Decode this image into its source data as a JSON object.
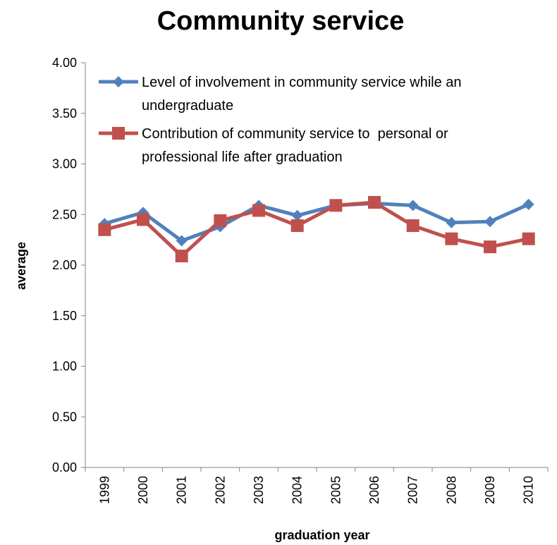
{
  "chart_data": {
    "type": "line",
    "title": "Community service",
    "xlabel": "graduation year",
    "ylabel": "average",
    "ylim": [
      0,
      4
    ],
    "yticks": [
      "0.00",
      "0.50",
      "1.00",
      "1.50",
      "2.00",
      "2.50",
      "3.00",
      "3.50",
      "4.00"
    ],
    "categories": [
      "1999",
      "2000",
      "2001",
      "2002",
      "2003",
      "2004",
      "2005",
      "2006",
      "2007",
      "2008",
      "2009",
      "2010"
    ],
    "grid": false,
    "legend_position": "top-left",
    "series": [
      {
        "name": "Level of involvement in community service while an undergraduate",
        "legend_lines": [
          "Level of involvement in community service while an",
          "undergraduate"
        ],
        "color": "#4F81BD",
        "marker": "diamond",
        "values": [
          2.41,
          2.52,
          2.24,
          2.38,
          2.59,
          2.49,
          2.59,
          2.61,
          2.59,
          2.42,
          2.43,
          2.6
        ]
      },
      {
        "name": "Contribution of community service to  personal or professional life after graduation",
        "legend_lines": [
          "Contribution of community service to  personal or",
          "professional life after graduation"
        ],
        "color": "#C0504D",
        "marker": "square",
        "values": [
          2.35,
          2.45,
          2.09,
          2.44,
          2.54,
          2.39,
          2.59,
          2.62,
          2.39,
          2.26,
          2.18,
          2.26
        ]
      }
    ]
  }
}
